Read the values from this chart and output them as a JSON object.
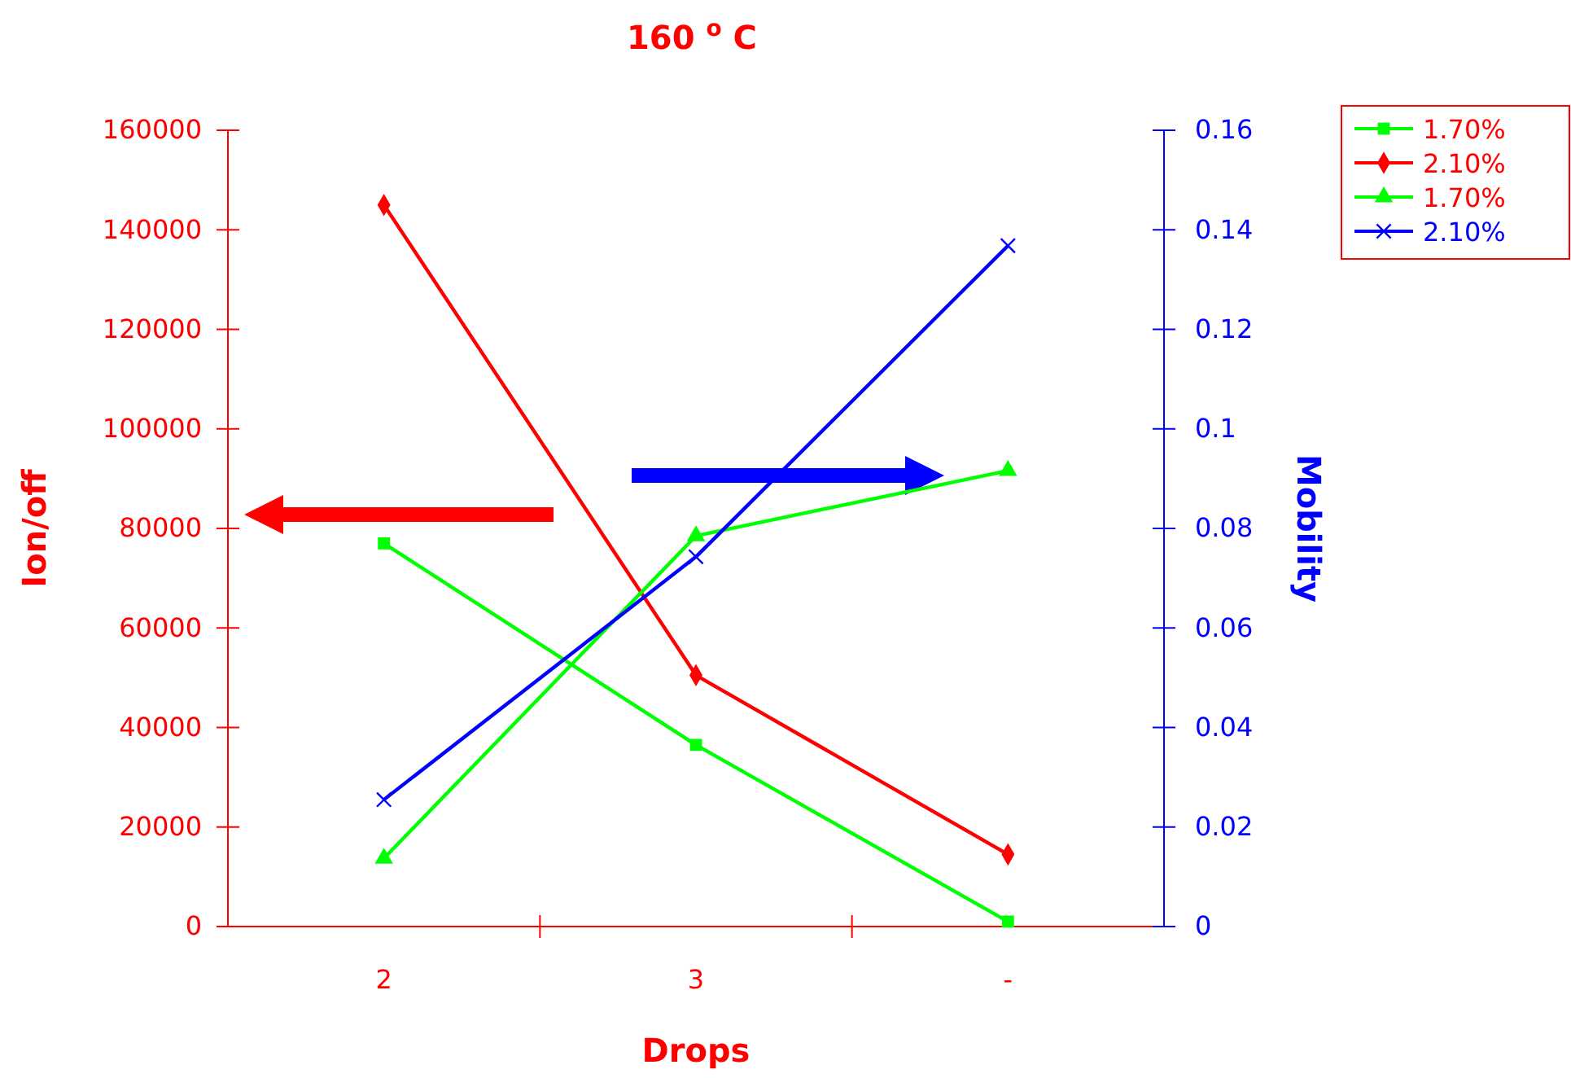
{
  "chart_data": {
    "type": "line",
    "title": "160 $^{o}$ C",
    "xlabel": "Drops",
    "ylabel": "Ion/off",
    "y2label": "Mobility",
    "categories": [
      "2",
      "3",
      "-"
    ],
    "series": [
      {
        "name": "1.70%",
        "color": "#00ff00",
        "marker": "square",
        "values": [
          77000,
          36500,
          1000
        ]
      },
      {
        "name": "2.10%",
        "color": "#ff0000",
        "marker": "diamond",
        "values": [
          145000,
          50500,
          14500
        ]
      },
      {
        "name": "1.70%",
        "color": "#00ff00",
        "marker": "triangle",
        "axis": "y2",
        "values": [
          0.0137,
          0.0785,
          0.0916
        ]
      },
      {
        "name": "2.10%",
        "color": "#0000ff",
        "marker": "cross",
        "axis": "y2",
        "values": [
          0.0255,
          0.0743,
          0.1368
        ]
      }
    ],
    "ylim": [
      0,
      160000
    ],
    "yticks": [
      0,
      20000,
      40000,
      60000,
      80000,
      100000,
      120000,
      140000,
      160000
    ],
    "y2lim": [
      0,
      0.16
    ],
    "y2ticks": [
      0,
      {
        "value": 0.02,
        "label": "0.02"
      },
      {
        "value": 0.04,
        "label": "0.04"
      },
      {
        "value": 0.06,
        "label": "0.06"
      },
      {
        "value": 0.08,
        "label": "0.08"
      },
      {
        "value": 0.1,
        "label": "0.1"
      },
      {
        "value": 0.12,
        "label": "0.12"
      },
      {
        "value": 0.14,
        "label": "0.14"
      },
      {
        "value": 0.16,
        "label": "0.16"
      }
    ],
    "legend": "top right",
    "grid": false,
    "line_style": "solid"
  }
}
